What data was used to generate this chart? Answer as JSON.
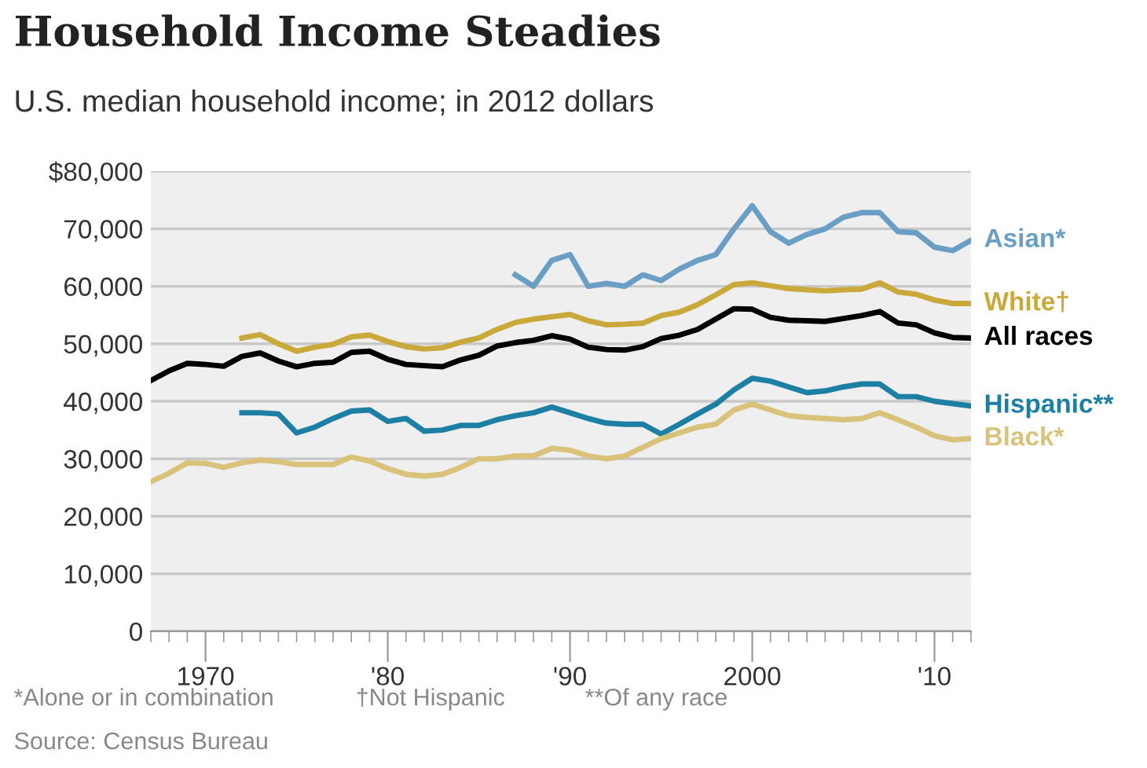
{
  "chart_data": {
    "type": "line",
    "title": "Household Income Steadies",
    "subtitle": "U.S. median household income; in 2012 dollars",
    "annotations": [
      "*Alone or in combination",
      "†Not Hispanic",
      "**Of any race",
      "Source: Census Bureau"
    ],
    "xlim": [
      1967,
      2012
    ],
    "xticks": [
      {
        "value": 1970,
        "label": "1970"
      },
      {
        "value": 1980,
        "label": "'80"
      },
      {
        "value": 1990,
        "label": "'90"
      },
      {
        "value": 2000,
        "label": "2000"
      },
      {
        "value": 2010,
        "label": "'10"
      }
    ],
    "ylim": [
      0,
      80000
    ],
    "yticks": [
      {
        "value": 0,
        "label": "0"
      },
      {
        "value": 10000,
        "label": "10,000"
      },
      {
        "value": 20000,
        "label": "20,000"
      },
      {
        "value": 30000,
        "label": "30,000"
      },
      {
        "value": 40000,
        "label": "40,000"
      },
      {
        "value": 50000,
        "label": "50,000"
      },
      {
        "value": 60000,
        "label": "60,000"
      },
      {
        "value": 70000,
        "label": "70,000"
      },
      {
        "value": 80000,
        "label": "$80,000"
      }
    ],
    "grid": "y",
    "legend": false,
    "marker": "none",
    "line_style": "solid",
    "series": [
      {
        "name": "Asian*",
        "color": "#6a9ec4",
        "x": [
          1987,
          1988,
          1989,
          1990,
          1991,
          1992,
          1993,
          1994,
          1995,
          1996,
          1997,
          1998,
          1999,
          2000,
          2001,
          2002,
          2003,
          2004,
          2005,
          2006,
          2007,
          2008,
          2009,
          2010,
          2011,
          2012
        ],
        "values": [
          62000,
          60000,
          64500,
          65500,
          60000,
          60500,
          60000,
          62000,
          61000,
          63000,
          64500,
          65500,
          70000,
          74000,
          69500,
          67500,
          69000,
          70000,
          72000,
          72800,
          72800,
          69500,
          69300,
          66800,
          66200,
          68000
        ]
      },
      {
        "name": "White†",
        "color": "#c8a93a",
        "x": [
          1972,
          1973,
          1974,
          1975,
          1976,
          1977,
          1978,
          1979,
          1980,
          1981,
          1982,
          1983,
          1984,
          1985,
          1986,
          1987,
          1988,
          1989,
          1990,
          1991,
          1992,
          1993,
          1994,
          1995,
          1996,
          1997,
          1998,
          1999,
          2000,
          2001,
          2002,
          2003,
          2004,
          2005,
          2006,
          2007,
          2008,
          2009,
          2010,
          2011,
          2012
        ],
        "values": [
          51000,
          51600,
          50000,
          48700,
          49400,
          49900,
          51200,
          51500,
          50400,
          49500,
          49100,
          49300,
          50300,
          51000,
          52500,
          53700,
          54300,
          54700,
          55100,
          54000,
          53300,
          53400,
          53600,
          54900,
          55500,
          56800,
          58500,
          60300,
          60600,
          60100,
          59600,
          59400,
          59200,
          59400,
          59500,
          60600,
          59000,
          58600,
          57600,
          57000,
          57000
        ]
      },
      {
        "name": "All races",
        "color": "#000000",
        "x": [
          1967,
          1968,
          1969,
          1970,
          1971,
          1972,
          1973,
          1974,
          1975,
          1976,
          1977,
          1978,
          1979,
          1980,
          1981,
          1982,
          1983,
          1984,
          1985,
          1986,
          1987,
          1988,
          1989,
          1990,
          1991,
          1992,
          1993,
          1994,
          1995,
          1996,
          1997,
          1998,
          1999,
          2000,
          2001,
          2002,
          2003,
          2004,
          2005,
          2006,
          2007,
          2008,
          2009,
          2010,
          2011,
          2012
        ],
        "values": [
          43600,
          45300,
          46600,
          46400,
          46100,
          47800,
          48400,
          47000,
          46000,
          46600,
          46800,
          48500,
          48700,
          47300,
          46400,
          46200,
          46000,
          47200,
          48000,
          49600,
          50200,
          50600,
          51400,
          50800,
          49400,
          49000,
          48900,
          49500,
          50900,
          51500,
          52500,
          54300,
          56100,
          56000,
          54600,
          54100,
          54000,
          53900,
          54400,
          54900,
          55600,
          53600,
          53300,
          51900,
          51100,
          51000
        ]
      },
      {
        "name": "Hispanic**",
        "color": "#1d7fa3",
        "x": [
          1972,
          1973,
          1974,
          1975,
          1976,
          1977,
          1978,
          1979,
          1980,
          1981,
          1982,
          1983,
          1984,
          1985,
          1986,
          1987,
          1988,
          1989,
          1990,
          1991,
          1992,
          1993,
          1994,
          1995,
          1996,
          1997,
          1998,
          1999,
          2000,
          2001,
          2002,
          2003,
          2004,
          2005,
          2006,
          2007,
          2008,
          2009,
          2010,
          2011,
          2012
        ],
        "values": [
          38000,
          38000,
          37800,
          34500,
          35500,
          37000,
          38300,
          38500,
          36500,
          37000,
          34800,
          35000,
          35800,
          35800,
          36800,
          37500,
          38000,
          39000,
          38000,
          37000,
          36200,
          36000,
          36000,
          34300,
          36000,
          37800,
          39500,
          42000,
          44000,
          43500,
          42500,
          41500,
          41800,
          42500,
          43000,
          43000,
          40800,
          40800,
          40000,
          39600,
          39200
        ]
      },
      {
        "name": "Black*",
        "color": "#d9c27a",
        "x": [
          1967,
          1968,
          1969,
          1970,
          1971,
          1972,
          1973,
          1974,
          1975,
          1976,
          1977,
          1978,
          1979,
          1980,
          1981,
          1982,
          1983,
          1984,
          1985,
          1986,
          1987,
          1988,
          1989,
          1990,
          1991,
          1992,
          1993,
          1994,
          1995,
          1996,
          1997,
          1998,
          1999,
          2000,
          2001,
          2002,
          2003,
          2004,
          2005,
          2006,
          2007,
          2008,
          2009,
          2010,
          2011,
          2012
        ],
        "values": [
          26000,
          27500,
          29300,
          29200,
          28500,
          29300,
          29800,
          29500,
          29000,
          29000,
          29000,
          30300,
          29600,
          28300,
          27300,
          27000,
          27300,
          28500,
          30000,
          30000,
          30500,
          30500,
          31800,
          31500,
          30500,
          30000,
          30500,
          32000,
          33500,
          34500,
          35500,
          36000,
          38500,
          39500,
          38500,
          37500,
          37200,
          37000,
          36800,
          37000,
          38000,
          36800,
          35500,
          34000,
          33300,
          33500
        ]
      }
    ]
  }
}
